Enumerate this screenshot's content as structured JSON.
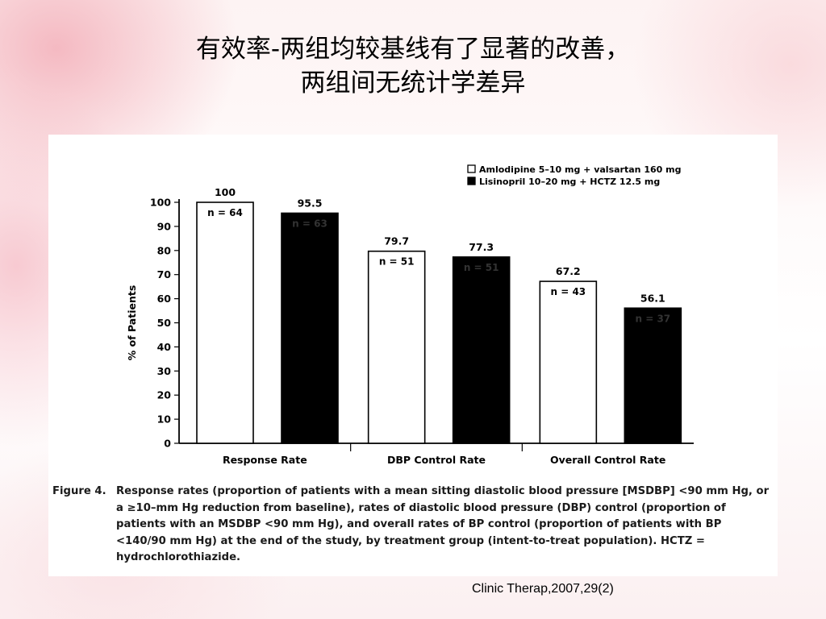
{
  "slide": {
    "title_line1": "有效率-两组均较基线有了显著的改善，",
    "title_line2": "两组间无统计学差异",
    "citation": "Clinic Therap,2007,29(2)"
  },
  "caption": {
    "label": "Figure 4.",
    "text": "Response rates (proportion of patients with a mean sitting diastolic blood pressure [MSDBP] <90 mm Hg, or a ≥10–mm Hg reduction from baseline), rates of diastolic blood pressure (DBP) control (proportion of patients with an MSDBP <90 mm Hg), and overall rates of BP control (proportion of patients with BP <140/90 mm Hg) at the end of the study, by treatment group (intent-to-treat population). HCTZ = hydrochlorothiazide."
  },
  "chart_data": {
    "type": "bar",
    "ylabel": "% of Patients",
    "xlabel": "",
    "ylim": [
      0,
      100
    ],
    "yticks": [
      0,
      10,
      20,
      30,
      40,
      50,
      60,
      70,
      80,
      90,
      100
    ],
    "grid": false,
    "legend_position": "top-right",
    "categories": [
      "Response Rate",
      "DBP Control Rate",
      "Overall Control Rate"
    ],
    "series": [
      {
        "name": "Amlodipine 5–10 mg + valsartan 160 mg",
        "color": "#ffffff",
        "values": [
          100,
          79.7,
          67.2
        ],
        "value_labels": [
          "100",
          "79.7",
          "67.2"
        ],
        "n_labels": [
          "n = 64",
          "n = 51",
          "n = 43"
        ]
      },
      {
        "name": "Lisinopril 10–20 mg + HCTZ 12.5 mg",
        "color": "#000000",
        "values": [
          95.5,
          77.3,
          56.1
        ],
        "value_labels": [
          "95.5",
          "77.3",
          "56.1"
        ],
        "n_labels": [
          "n = 63",
          "n = 51",
          "n = 37"
        ]
      }
    ]
  }
}
